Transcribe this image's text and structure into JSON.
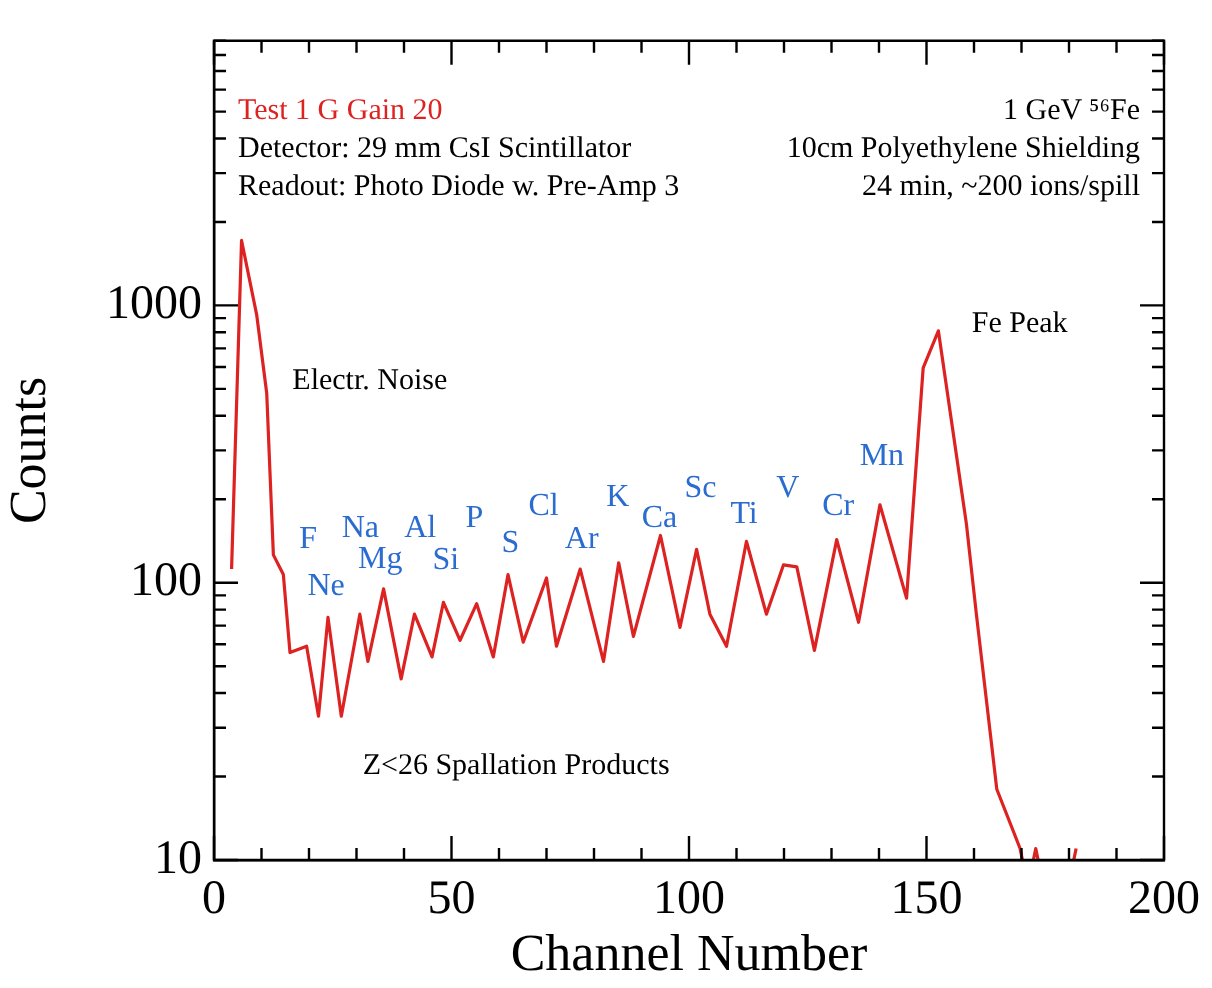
{
  "chart_data": {
    "type": "line",
    "title": "Test 1 G Gain 20",
    "xlabel": "Channel Number",
    "ylabel": "Counts",
    "x": [
      3.7,
      5.8,
      9.0,
      11.1,
      12.5,
      14.6,
      16,
      19.5,
      22,
      24,
      26.8,
      30.7,
      32.4,
      35.7,
      39.4,
      42.2,
      45.9,
      48.3,
      51.8,
      55.3,
      58.8,
      61.9,
      65.1,
      70,
      72.1,
      77.1,
      82,
      85.2,
      88.3,
      94,
      98.1,
      101.6,
      104.4,
      107.9,
      112.1,
      116.3,
      119.9,
      122.7,
      126.4,
      131.1,
      135.7,
      140.2,
      145.8,
      149.3,
      152.5,
      158.4,
      160.5,
      164.8,
      169.7,
      170.2,
      171,
      172.5,
      173,
      173.5,
      175,
      181,
      181.5
    ],
    "series": [
      {
        "color": "#dd2222",
        "values": [
          112,
          1715,
          922,
          482,
          126,
          107,
          56,
          59,
          33,
          75,
          33,
          77,
          52,
          95,
          45,
          77,
          54,
          85,
          62,
          84,
          54,
          107,
          61,
          104,
          59,
          112,
          52,
          118,
          64,
          148,
          69,
          132,
          77,
          59,
          141,
          77,
          116,
          114,
          57,
          143,
          72,
          191,
          88,
          595,
          810,
          163,
          77,
          18,
          11,
          10,
          null,
          10,
          11,
          10,
          null,
          10,
          11
        ]
      }
    ],
    "xlim": [
      0,
      200
    ],
    "ylim": [
      10,
      9000
    ],
    "log": "y",
    "xticks": [
      0,
      {
        "value": 10,
        "label": null
      },
      {
        "value": 20,
        "label": null
      },
      {
        "value": 30,
        "label": null
      },
      {
        "value": 40,
        "label": null
      },
      50,
      {
        "value": 60,
        "label": null
      },
      {
        "value": 70,
        "label": null
      },
      {
        "value": 80,
        "label": null
      },
      {
        "value": 90,
        "label": null
      },
      100,
      {
        "value": 110,
        "label": null
      },
      {
        "value": 120,
        "label": null
      },
      {
        "value": 130,
        "label": null
      },
      {
        "value": 140,
        "label": null
      },
      150,
      {
        "value": 160,
        "label": null
      },
      {
        "value": 170,
        "label": null
      },
      {
        "value": 180,
        "label": null
      },
      {
        "value": 190,
        "label": null
      },
      200
    ],
    "yticks": [
      10,
      {
        "value": 20,
        "label": null
      },
      {
        "value": 30,
        "label": null
      },
      {
        "value": 40,
        "label": null
      },
      {
        "value": 50,
        "label": null
      },
      {
        "value": 60,
        "label": null
      },
      {
        "value": 70,
        "label": null
      },
      {
        "value": 80,
        "label": null
      },
      {
        "value": 90,
        "label": null
      },
      100,
      {
        "value": 200,
        "label": null
      },
      {
        "value": 300,
        "label": null
      },
      {
        "value": 400,
        "label": null
      },
      {
        "value": 500,
        "label": null
      },
      {
        "value": 600,
        "label": null
      },
      {
        "value": 700,
        "label": null
      },
      {
        "value": 800,
        "label": null
      },
      {
        "value": 900,
        "label": null
      },
      1000,
      {
        "value": 2000,
        "label": null
      },
      {
        "value": 3000,
        "label": null
      },
      {
        "value": 4000,
        "label": null
      },
      {
        "value": 5000,
        "label": null
      },
      {
        "value": 6000,
        "label": null
      },
      {
        "value": 7000,
        "label": null
      },
      {
        "value": 8000,
        "label": null
      },
      {
        "value": 9000,
        "label": null
      }
    ],
    "grid": false,
    "legend": false,
    "annotations": [
      "Detector: 29 mm CsI Scintillator",
      "Readout: Photo Diode w. Pre-Amp 3",
      "1 GeV ⁵⁶Fe",
      "10cm Polyethylene Shielding",
      "24 min, ~200 ions/spill",
      "Electr. Noise",
      "Fe Peak",
      "Z<26 Spallation Products",
      "F",
      "Ne",
      "Na",
      "Mg",
      "Al",
      "Si",
      "P",
      "S",
      "Cl",
      "Ar",
      "K",
      "Ca",
      "Sc",
      "Ti",
      "V",
      "Cr",
      "Mn"
    ]
  }
}
